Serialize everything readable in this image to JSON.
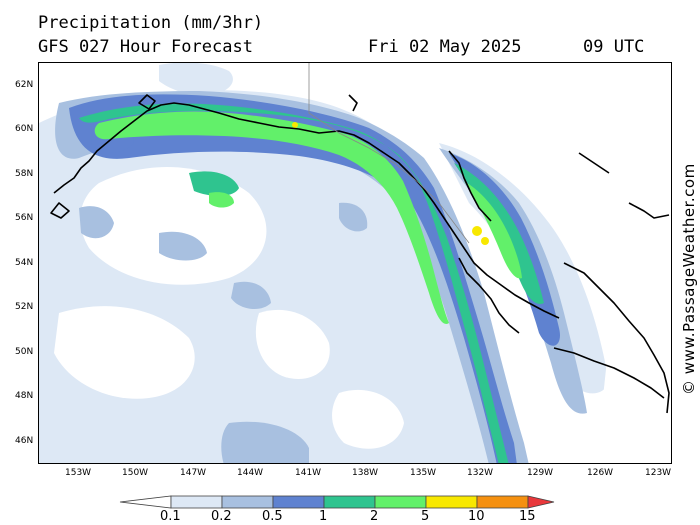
{
  "header": {
    "title": "Precipitation (mm/3hr)",
    "forecast": "GFS 027 Hour Forecast",
    "date": "Fri 02 May 2025",
    "time": "09 UTC"
  },
  "map": {
    "lat_labels": [
      "62N",
      "60N",
      "58N",
      "56N",
      "54N",
      "52N",
      "50N",
      "48N",
      "46N"
    ],
    "lon_labels": [
      "153W",
      "150W",
      "147W",
      "144W",
      "141W",
      "138W",
      "135W",
      "132W",
      "129W",
      "126W",
      "123W"
    ],
    "region": "Gulf of Alaska and British Columbia coast"
  },
  "credit": "© www.PassageWeather.com",
  "legend": {
    "labels": [
      "0.1",
      "0.2",
      "0.5",
      "1",
      "2",
      "5",
      "10",
      "15"
    ],
    "colors": [
      "#ffffff",
      "#dde8f5",
      "#a8c0e0",
      "#5f82d0",
      "#2fc48f",
      "#62f06a",
      "#f8e800",
      "#f59010",
      "#e8383c"
    ]
  }
}
